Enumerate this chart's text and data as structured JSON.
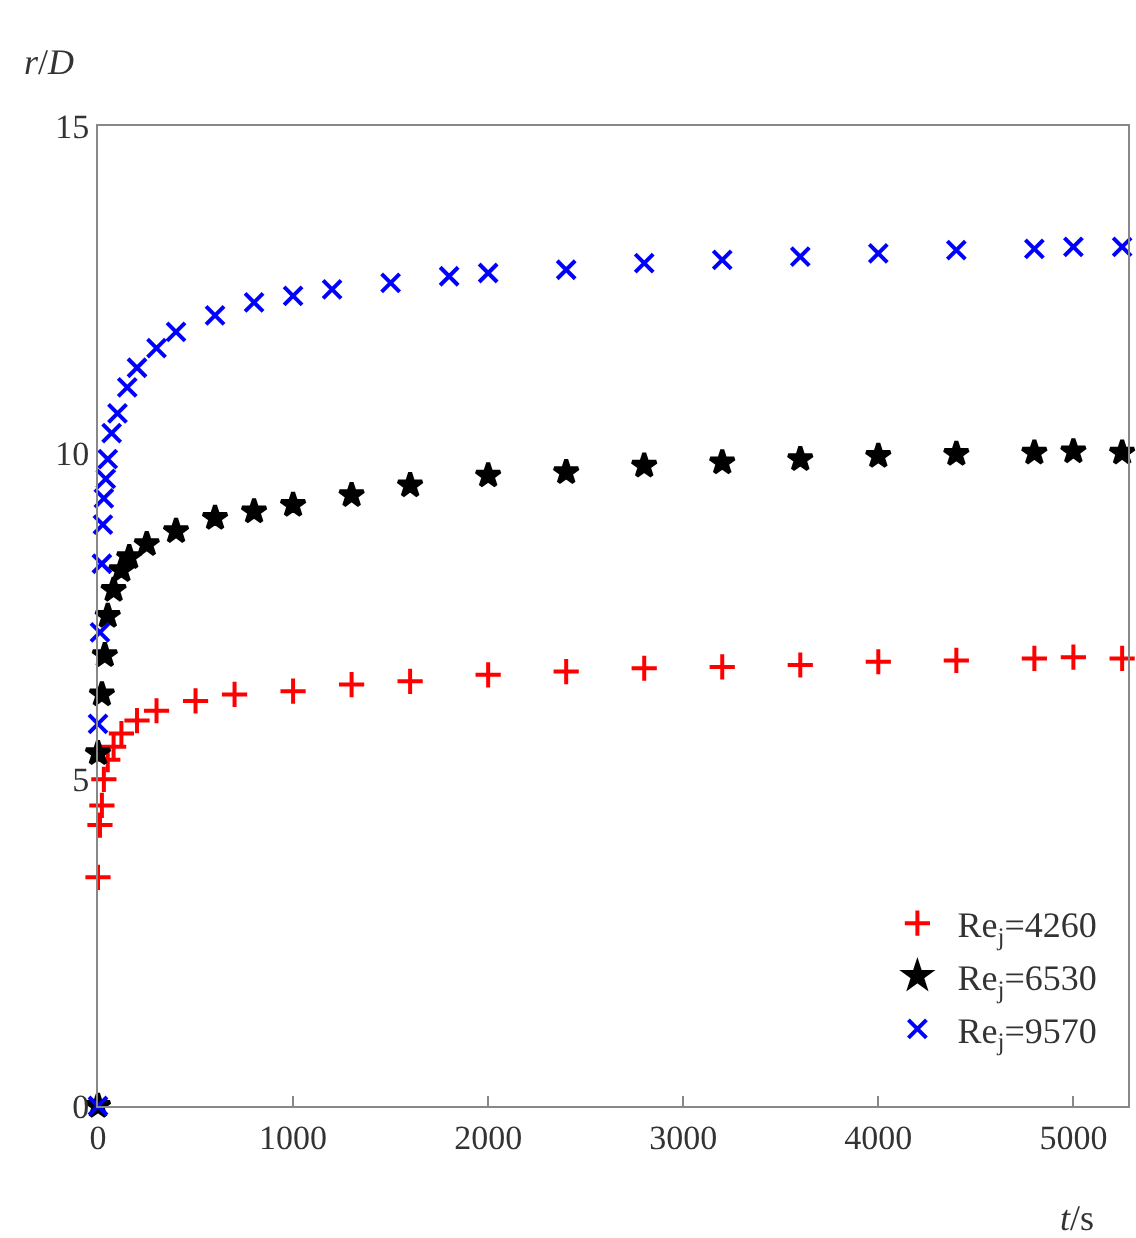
{
  "chart_data": {
    "type": "scatter",
    "xlabel": "t/s",
    "ylabel": "r/D",
    "xlim": [
      0,
      5280
    ],
    "ylim": [
      0,
      15
    ],
    "xticks": [
      0,
      1000,
      2000,
      3000,
      4000,
      5000
    ],
    "yticks": [
      0,
      5,
      10,
      15
    ],
    "grid": false,
    "legend": "bottom right",
    "series": [
      {
        "name": "Re$_{j}$=4260",
        "color": "#ff0000",
        "marker": "cross",
        "x": [
          0,
          10,
          20,
          30,
          50,
          80,
          120,
          200,
          300,
          500,
          700,
          1000,
          1300,
          1600,
          2000,
          2400,
          2800,
          3200,
          3600,
          4000,
          4400,
          4800,
          5000,
          5250
        ],
        "values": [
          3.5,
          4.3,
          4.6,
          5.0,
          5.3,
          5.5,
          5.7,
          5.9,
          6.05,
          6.2,
          6.3,
          6.35,
          6.45,
          6.5,
          6.6,
          6.65,
          6.7,
          6.72,
          6.75,
          6.8,
          6.82,
          6.85,
          6.87,
          6.85
        ]
      },
      {
        "name": "Re$_{j}$=6530",
        "color": "#000000",
        "marker": "star",
        "x": [
          0,
          0,
          10,
          20,
          35,
          50,
          80,
          120,
          160,
          250,
          400,
          600,
          800,
          1000,
          1300,
          1600,
          2000,
          2400,
          2800,
          3200,
          3600,
          4000,
          4400,
          4800,
          5000,
          5250
        ],
        "values": [
          0,
          5.4,
          null,
          6.3,
          6.9,
          7.5,
          7.9,
          8.2,
          8.4,
          8.6,
          8.8,
          9.0,
          9.1,
          9.2,
          9.35,
          9.5,
          9.65,
          9.7,
          9.8,
          9.85,
          9.9,
          9.95,
          9.98,
          10.0,
          10.02,
          10.0
        ]
      },
      {
        "name": "Re$_{j}$=9570",
        "color": "#0000ff",
        "marker": "x",
        "x": [
          0,
          0,
          10,
          20,
          25,
          30,
          40,
          50,
          70,
          100,
          150,
          200,
          300,
          400,
          600,
          800,
          1000,
          1200,
          1500,
          1800,
          2000,
          2400,
          2800,
          3200,
          3600,
          4000,
          4400,
          4800,
          5000,
          5250
        ],
        "values": [
          0,
          5.85,
          7.25,
          8.3,
          8.9,
          9.3,
          9.6,
          9.9,
          10.3,
          10.6,
          11.0,
          11.3,
          11.6,
          11.85,
          12.1,
          12.3,
          12.4,
          12.5,
          12.6,
          12.7,
          12.75,
          12.8,
          12.9,
          12.95,
          13.0,
          13.05,
          13.1,
          13.12,
          13.15,
          13.15
        ]
      }
    ]
  }
}
